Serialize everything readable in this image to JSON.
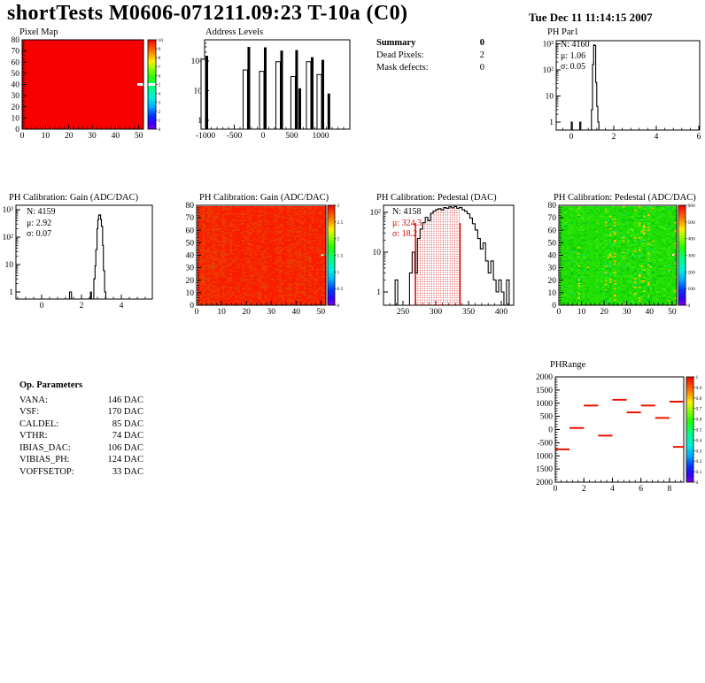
{
  "header": {
    "title": "shortTests M0606-071211.09:23 T-10a (C0)",
    "datetime": "Tue Dec 11 11:14:15 2007"
  },
  "summary": {
    "title": "Summary",
    "value": "0",
    "rows": [
      {
        "label": "Dead Pixels:",
        "value": "2"
      },
      {
        "label": "Mask defects:",
        "value": "0"
      }
    ]
  },
  "op_parameters": {
    "title": "Op. Parameters",
    "rows": [
      {
        "label": "VANA:",
        "value": "146 DAC"
      },
      {
        "label": "VSF:",
        "value": "170 DAC"
      },
      {
        "label": "CALDEL:",
        "value": "85 DAC"
      },
      {
        "label": "VTHR:",
        "value": "74 DAC"
      },
      {
        "label": "IBIAS_DAC:",
        "value": "106 DAC"
      },
      {
        "label": "VIBIAS_PH:",
        "value": "124 DAC"
      },
      {
        "label": "VOFFSETOP:",
        "value": "33 DAC"
      }
    ]
  },
  "chart_data": [
    {
      "id": "pixel_map",
      "type": "heatmap",
      "title": "Pixel Map",
      "xlim": [
        0,
        52
      ],
      "ylim": [
        0,
        80
      ],
      "zlim": [
        0,
        10
      ],
      "xticks": [
        0,
        10,
        20,
        30,
        40,
        50
      ],
      "yticks": [
        0,
        10,
        20,
        30,
        40,
        50,
        60,
        70,
        80
      ],
      "colorbar_ticks": [
        "10",
        "9",
        "8",
        "7",
        "6",
        "5",
        "4",
        "3",
        "2",
        "1",
        "0"
      ],
      "uniform_value": 10,
      "base_color": "#f80000",
      "anomalies": [
        {
          "x": 51,
          "y": 40,
          "color": "#ffffff"
        }
      ],
      "colorbar_marker": {
        "value": 5,
        "color": "#ffffff"
      }
    },
    {
      "id": "address_levels",
      "type": "histogram",
      "title": "Address Levels",
      "log_y": true,
      "xticks": [
        -1000,
        -500,
        0,
        500,
        1000
      ],
      "ytick_labels": [
        "1",
        "10",
        "10²"
      ],
      "peaks": [
        [
          -1000,
          115,
          150
        ],
        [
          -270,
          50,
          300
        ],
        [
          15,
          45,
          290
        ],
        [
          300,
          95,
          225
        ],
        [
          560,
          30,
          235
        ],
        [
          615,
          0,
          12
        ],
        [
          830,
          95,
          135
        ],
        [
          1015,
          35,
          110
        ],
        [
          1120,
          0,
          8
        ]
      ]
    },
    {
      "id": "ph_par1",
      "type": "histogram",
      "title": "PH Par1",
      "log_y": true,
      "stats": {
        "entries": {
          "text": "N: 4160",
          "color": "#000000"
        },
        "mean": {
          "text": "μ: 1.06",
          "color": "#000000"
        },
        "sigma": {
          "text": "σ: 0.05",
          "color": "#000000"
        }
      },
      "xticks": [
        0,
        2,
        4,
        6
      ],
      "ytick_labels": [
        "1",
        "10",
        "10²",
        "10³"
      ],
      "steps": [
        [
          -0.72,
          0
        ],
        [
          0,
          1
        ],
        [
          0.05,
          0
        ],
        [
          0.4,
          1
        ],
        [
          0.45,
          0
        ],
        [
          0.95,
          3
        ],
        [
          1.0,
          160
        ],
        [
          1.05,
          900
        ],
        [
          1.1,
          860
        ],
        [
          1.15,
          33
        ],
        [
          1.2,
          4
        ],
        [
          1.25,
          1
        ],
        [
          1.3,
          0
        ],
        [
          6,
          0
        ]
      ]
    },
    {
      "id": "gain_hist",
      "type": "histogram",
      "title": "PH Calibration: Gain (ADC/DAC)",
      "log_y": true,
      "stats": {
        "entries": {
          "text": "N: 4159",
          "color": "#000000"
        },
        "mean": {
          "text": "μ: 2.92",
          "color": "#000000"
        },
        "sigma": {
          "text": "σ: 0.07",
          "color": "#000000"
        }
      },
      "xticks": [
        0,
        2,
        4
      ],
      "ytick_labels": [
        "1",
        "10",
        "10²",
        "10³"
      ],
      "steps": [
        [
          -1.28,
          0
        ],
        [
          1.4,
          1
        ],
        [
          1.5,
          0
        ],
        [
          2.45,
          1
        ],
        [
          2.5,
          0
        ],
        [
          2.62,
          3
        ],
        [
          2.68,
          9
        ],
        [
          2.72,
          35
        ],
        [
          2.78,
          200
        ],
        [
          2.82,
          430
        ],
        [
          2.86,
          630
        ],
        [
          2.92,
          650
        ],
        [
          2.96,
          440
        ],
        [
          3.0,
          250
        ],
        [
          3.06,
          50
        ],
        [
          3.1,
          6
        ],
        [
          3.16,
          1
        ],
        [
          3.22,
          0
        ],
        [
          5.5,
          0
        ]
      ]
    },
    {
      "id": "gain_map",
      "type": "heatmap",
      "title": "PH Calibration: Gain (ADC/DAC)",
      "xlim": [
        0,
        52
      ],
      "ylim": [
        0,
        80
      ],
      "zlim": [
        0,
        3
      ],
      "xticks": [
        0,
        10,
        20,
        30,
        40,
        50
      ],
      "yticks": [
        0,
        10,
        20,
        30,
        40,
        50,
        60,
        70,
        80
      ],
      "colorbar_ticks": [
        "3",
        "2.5",
        "2",
        "1.5",
        "1",
        "0.5",
        "0"
      ],
      "seed": 7,
      "palette": [
        [
          "#fa1c00",
          0.5
        ],
        [
          "#ee3800",
          0.28
        ],
        [
          "#f63000",
          0.14
        ],
        [
          "#e04600",
          0.08
        ]
      ],
      "anomalies": [
        {
          "x": 50,
          "y": 40,
          "color": "#ffffff"
        },
        {
          "x": 51,
          "y": 40,
          "color": "#2ecc40"
        }
      ]
    },
    {
      "id": "pedestal_hist",
      "type": "histogram",
      "title": "PH Calibration: Pedestal (DAC)",
      "log_y": true,
      "stats": {
        "entries": {
          "text": "N: 4158",
          "color": "#000000"
        },
        "mean": {
          "text": "μ: 324.3",
          "color": "#dd0000"
        },
        "sigma": {
          "text": "σ: 18.2",
          "color": "#dd0000"
        }
      },
      "xticks": [
        250,
        300,
        350,
        400
      ],
      "ytick_labels": [
        "1",
        "10",
        "10²"
      ],
      "steps": [
        [
          222,
          0
        ],
        [
          238,
          2
        ],
        [
          242,
          0
        ],
        [
          260,
          3
        ],
        [
          264,
          10
        ],
        [
          268,
          3
        ],
        [
          272,
          22
        ],
        [
          276,
          38
        ],
        [
          280,
          55
        ],
        [
          284,
          75
        ],
        [
          288,
          62
        ],
        [
          292,
          95
        ],
        [
          296,
          108
        ],
        [
          300,
          118
        ],
        [
          304,
          124
        ],
        [
          308,
          116
        ],
        [
          312,
          132
        ],
        [
          316,
          126
        ],
        [
          320,
          138
        ],
        [
          324,
          130
        ],
        [
          328,
          140
        ],
        [
          332,
          126
        ],
        [
          336,
          133
        ],
        [
          340,
          116
        ],
        [
          344,
          106
        ],
        [
          348,
          92
        ],
        [
          352,
          72
        ],
        [
          356,
          52
        ],
        [
          360,
          36
        ],
        [
          364,
          22
        ],
        [
          368,
          12
        ],
        [
          372,
          17
        ],
        [
          376,
          6
        ],
        [
          380,
          3
        ],
        [
          384,
          6
        ],
        [
          388,
          2
        ],
        [
          392,
          1
        ],
        [
          396,
          2
        ],
        [
          400,
          1
        ],
        [
          404,
          0
        ],
        [
          408,
          2
        ],
        [
          412,
          0
        ],
        [
          419,
          0
        ]
      ],
      "fit": {
        "lines_x": [
          269,
          337
        ],
        "line_top_count": 54,
        "color": "#dd0000",
        "fill_dot_color": "#d00000"
      }
    },
    {
      "id": "pedestal_map",
      "type": "heatmap",
      "title": "PH Calibration: Pedestal (ADC/DAC)",
      "xlim": [
        0,
        52
      ],
      "ylim": [
        0,
        80
      ],
      "zlim": [
        0,
        600
      ],
      "xticks": [
        0,
        10,
        20,
        30,
        40,
        50
      ],
      "yticks": [
        0,
        10,
        20,
        30,
        40,
        50,
        60,
        70,
        80
      ],
      "colorbar_ticks": [
        "600",
        "500",
        "400",
        "300",
        "200",
        "100",
        "0"
      ],
      "seed": 13,
      "palette": [
        [
          "#1fdd06",
          0.42
        ],
        [
          "#2ae404",
          0.24
        ],
        [
          "#13cf00",
          0.16
        ],
        [
          "#40ec12",
          0.1
        ],
        [
          "#00c32a",
          0.05
        ],
        [
          "#00dfa0",
          0.02
        ],
        [
          "#ffc400",
          0.01
        ]
      ],
      "anomalies": [
        {
          "x": 50,
          "y": 40,
          "color": "#ffffff"
        },
        {
          "x": 51,
          "y": 40,
          "color": "#ff3000"
        }
      ]
    },
    {
      "id": "ph_range",
      "type": "segments",
      "title": "PHRange",
      "ylim": [
        -2000,
        2000
      ],
      "xlim": [
        0,
        9
      ],
      "xticks": [
        0,
        2,
        4,
        6,
        8
      ],
      "ytick_labels": [
        "2000",
        "1500",
        "1000",
        "500",
        "0",
        "-500",
        "1000",
        "1500",
        "2000"
      ],
      "colorbar_ticks": [
        "1",
        "0.9",
        "0.8",
        "0.7",
        "0.6",
        "0.5",
        "0.4",
        "0.3",
        "0.2",
        "0.1",
        "0"
      ],
      "segment_color": "#ee1100",
      "segments": [
        [
          0,
          1,
          -750
        ],
        [
          1,
          2,
          60
        ],
        [
          2,
          3,
          910
        ],
        [
          3,
          4,
          -230
        ],
        [
          4,
          5,
          1130
        ],
        [
          5,
          6,
          650
        ],
        [
          6,
          7,
          910
        ],
        [
          7,
          8,
          440
        ],
        [
          8,
          9,
          1060
        ],
        [
          8.25,
          9,
          -660
        ]
      ]
    }
  ]
}
